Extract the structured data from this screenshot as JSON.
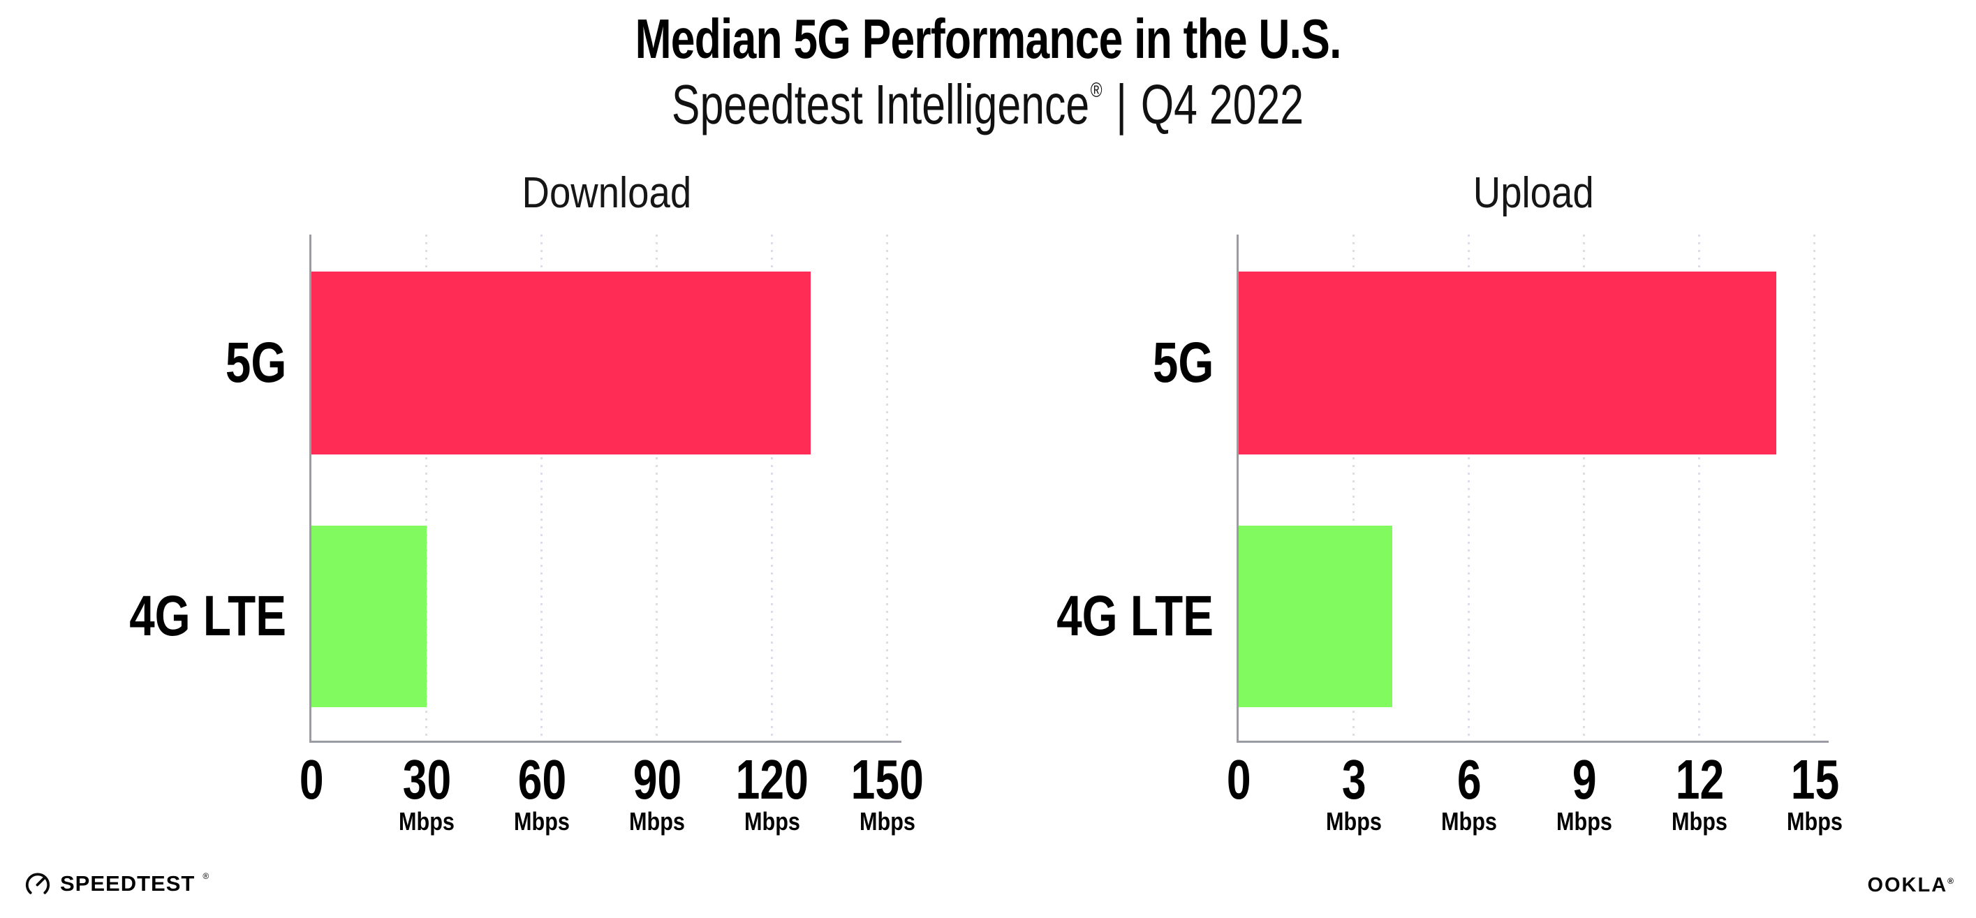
{
  "header": {
    "title": "Median 5G Performance in the U.S.",
    "subtitle_brand": "Speedtest Intelligence",
    "subtitle_registered": "®",
    "subtitle_separator": "|",
    "subtitle_period": "Q4 2022"
  },
  "charts": [
    {
      "title": "Download",
      "unit": "Mbps",
      "axis_max": 150,
      "bars": [
        {
          "label": "5G",
          "value": 130,
          "color": "#FF2D55"
        },
        {
          "label": "4G LTE",
          "value": 30,
          "color": "#80FA5F"
        }
      ],
      "ticks": [
        {
          "value": 0,
          "label": "0",
          "unit": ""
        },
        {
          "value": 30,
          "label": "30",
          "unit": "Mbps"
        },
        {
          "value": 60,
          "label": "60",
          "unit": "Mbps"
        },
        {
          "value": 90,
          "label": "90",
          "unit": "Mbps"
        },
        {
          "value": 120,
          "label": "120",
          "unit": "Mbps"
        },
        {
          "value": 150,
          "label": "150",
          "unit": "Mbps"
        }
      ]
    },
    {
      "title": "Upload",
      "unit": "Mbps",
      "axis_max": 15,
      "bars": [
        {
          "label": "5G",
          "value": 14,
          "color": "#FF2D55"
        },
        {
          "label": "4G LTE",
          "value": 4,
          "color": "#80FA5F"
        }
      ],
      "ticks": [
        {
          "value": 0,
          "label": "0",
          "unit": ""
        },
        {
          "value": 3,
          "label": "3",
          "unit": "Mbps"
        },
        {
          "value": 6,
          "label": "6",
          "unit": "Mbps"
        },
        {
          "value": 9,
          "label": "9",
          "unit": "Mbps"
        },
        {
          "value": 12,
          "label": "12",
          "unit": "Mbps"
        },
        {
          "value": 15,
          "label": "15",
          "unit": "Mbps"
        }
      ]
    }
  ],
  "colors": {
    "bar_5g": "#FF2D55",
    "bar_4g_lte": "#80FA5F",
    "axis": "#9b9ba3",
    "gridline": "#dddde8"
  },
  "footer": {
    "speedtest_wordmark": "SPEEDTEST",
    "speedtest_mark": "®",
    "ookla_wordmark": "OOKLA",
    "ookla_mark": "®"
  },
  "chart_data": {
    "type": "bar",
    "orientation": "horizontal",
    "title": "Median 5G Performance in the U.S.",
    "subtitle": "Speedtest Intelligence® | Q4 2022",
    "legend": "none",
    "grid": "vertical dotted gridlines",
    "panels": [
      {
        "title": "Download",
        "categories": [
          "5G",
          "4G LTE"
        ],
        "values": [
          130,
          30
        ],
        "unit": "Mbps",
        "xlim": [
          0,
          150
        ],
        "xticks": [
          0,
          30,
          60,
          90,
          120,
          150
        ]
      },
      {
        "title": "Upload",
        "categories": [
          "5G",
          "4G LTE"
        ],
        "values": [
          14,
          4
        ],
        "unit": "Mbps",
        "xlim": [
          0,
          15
        ],
        "xticks": [
          0,
          3,
          6,
          9,
          12,
          15
        ]
      }
    ],
    "series_colors": {
      "5G": "#FF2D55",
      "4G LTE": "#80FA5F"
    }
  }
}
